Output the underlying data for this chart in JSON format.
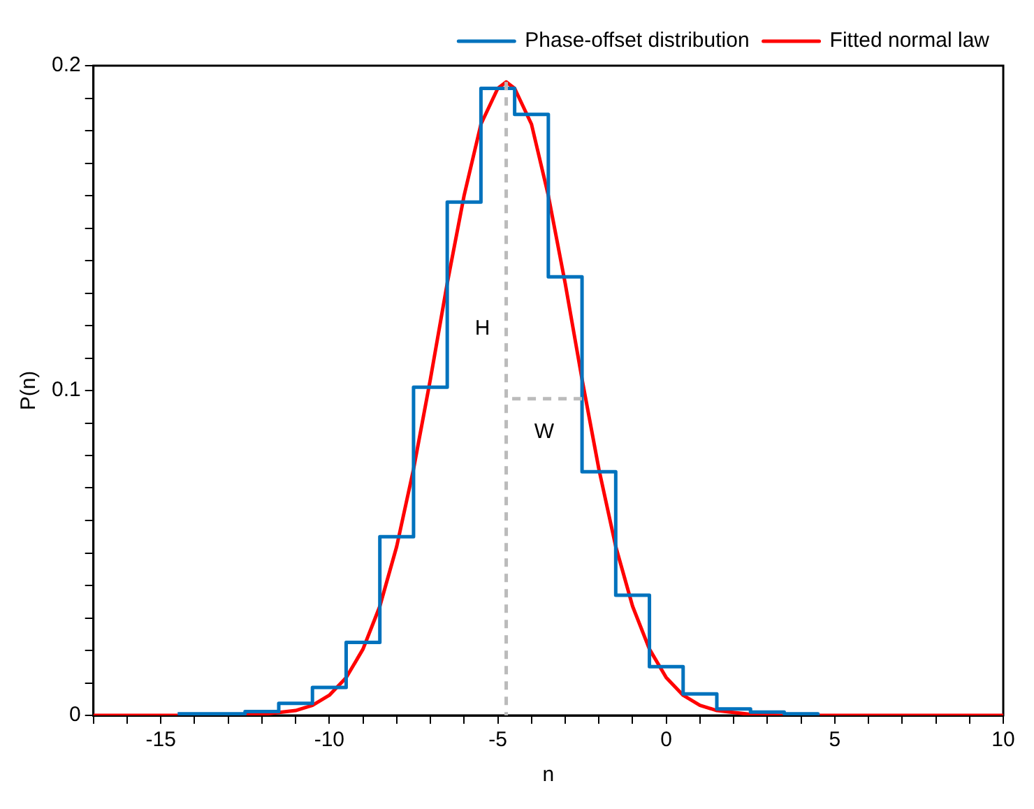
{
  "chart_data": {
    "type": "line",
    "xlabel": "n",
    "ylabel": "P(n)",
    "xlim": [
      -17,
      10
    ],
    "xticks": [
      {
        "value": -17,
        "label": null
      },
      {
        "value": -16,
        "label": null
      },
      -15,
      {
        "value": -14,
        "label": null
      },
      {
        "value": -13,
        "label": null
      },
      {
        "value": -12,
        "label": null
      },
      {
        "value": -11,
        "label": null
      },
      -10,
      {
        "value": -9,
        "label": null
      },
      {
        "value": -8,
        "label": null
      },
      {
        "value": -7,
        "label": null
      },
      {
        "value": -6,
        "label": null
      },
      -5,
      {
        "value": -4,
        "label": null
      },
      {
        "value": -3,
        "label": null
      },
      {
        "value": -2,
        "label": null
      },
      {
        "value": -1,
        "label": null
      },
      0,
      {
        "value": 1,
        "label": null
      },
      {
        "value": 2,
        "label": null
      },
      {
        "value": 3,
        "label": null
      },
      {
        "value": 4,
        "label": null
      },
      5,
      {
        "value": 6,
        "label": null
      },
      {
        "value": 7,
        "label": null
      },
      {
        "value": 8,
        "label": null
      },
      {
        "value": 9,
        "label": null
      },
      10
    ],
    "ylim": [
      0,
      0.2
    ],
    "yticks": [
      0,
      {
        "value": 0.01,
        "label": null
      },
      {
        "value": 0.02,
        "label": null
      },
      {
        "value": 0.03,
        "label": null
      },
      {
        "value": 0.04,
        "label": null
      },
      {
        "value": 0.05,
        "label": null
      },
      {
        "value": 0.06,
        "label": null
      },
      {
        "value": 0.07,
        "label": null
      },
      {
        "value": 0.08,
        "label": null
      },
      {
        "value": 0.09,
        "label": null
      },
      0.1,
      {
        "value": 0.11,
        "label": null
      },
      {
        "value": 0.12,
        "label": null
      },
      {
        "value": 0.13,
        "label": null
      },
      {
        "value": 0.14,
        "label": null
      },
      {
        "value": 0.15,
        "label": null
      },
      {
        "value": 0.16,
        "label": null
      },
      {
        "value": 0.17,
        "label": null
      },
      {
        "value": 0.18,
        "label": null
      },
      {
        "value": 0.19,
        "label": null
      },
      0.2
    ],
    "grid": false,
    "legend": "top right",
    "marker": "none",
    "annotations": [
      "H",
      "W"
    ],
    "series": [
      {
        "type": "line",
        "color": "#bbbbbb",
        "line_style": "dashed",
        "x": [
          -4.75,
          -4.75
        ],
        "values": [
          0.195,
          0
        ]
      },
      {
        "type": "line",
        "color": "#bbbbbb",
        "line_style": "dashed",
        "x": [
          -2.5,
          -4.75
        ],
        "values": [
          0.0975,
          0.0975
        ]
      },
      {
        "type": "step",
        "name": "Phase-offset distribution",
        "color": "#0072bd",
        "x": [
          -14.5,
          -13.5,
          -12.5,
          -11.5,
          -10.5,
          -9.5,
          -8.5,
          -7.5,
          -6.5,
          -5.5,
          -4.5,
          -3.5,
          -2.5,
          -1.5,
          -0.5,
          0.5,
          1.5,
          2.5,
          3.5,
          4.5
        ],
        "values": [
          0.0005,
          0.0005,
          0.0012,
          0.0037,
          0.0086,
          0.0225,
          0.055,
          0.101,
          0.158,
          0.193,
          0.185,
          0.135,
          0.075,
          0.037,
          0.015,
          0.0066,
          0.002,
          0.001,
          0.0005,
          0
        ]
      },
      {
        "type": "line",
        "name": "Fitted normal law",
        "color": "#ff0000",
        "x": [
          -17,
          -13,
          -12,
          -11,
          -10.5,
          -10,
          -9.5,
          -9,
          -8.5,
          -8,
          -7.5,
          -7,
          -6.5,
          -6,
          -5.5,
          -5,
          -4.75,
          -4.5,
          -4,
          -3.5,
          -3,
          -2.5,
          -2,
          -1.5,
          -1,
          -0.5,
          0,
          0.5,
          1,
          1.5,
          2.5,
          3.5,
          10
        ],
        "values": [
          0,
          0,
          0.0003,
          0.0015,
          0.0031,
          0.0062,
          0.0116,
          0.0204,
          0.0336,
          0.052,
          0.0758,
          0.1035,
          0.133,
          0.16,
          0.182,
          0.193,
          0.195,
          0.193,
          0.182,
          0.16,
          0.133,
          0.1035,
          0.0758,
          0.052,
          0.0336,
          0.0204,
          0.0116,
          0.0062,
          0.0031,
          0.0015,
          0.0003,
          0,
          0
        ]
      }
    ]
  }
}
